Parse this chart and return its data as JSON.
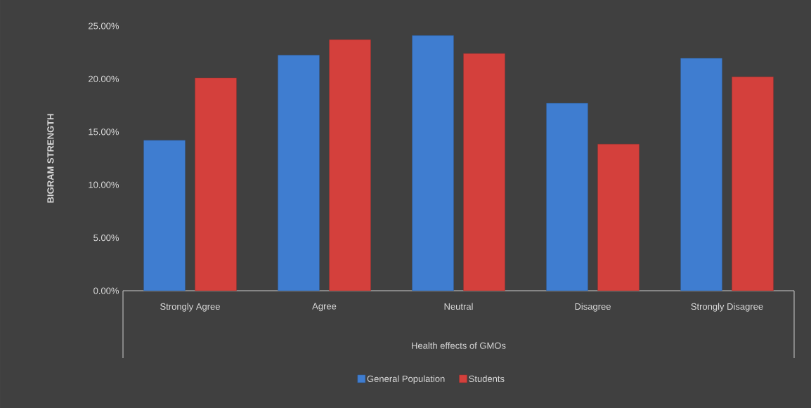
{
  "chart_data": {
    "type": "bar",
    "categories": [
      "Strongly Agree",
      "Agree",
      "Neutral",
      "Disagree",
      "Strongly Disagree"
    ],
    "xlabel": "Health effects of GMOs",
    "ylabel": "BIGRAM STRENGTH",
    "series": [
      {
        "name": "General Population",
        "color": "#3f7dd0",
        "values": [
          14.2,
          22.25,
          24.1,
          17.7,
          21.95
        ]
      },
      {
        "name": "Students",
        "color": "#d4403c",
        "values": [
          20.1,
          23.7,
          22.4,
          13.85,
          20.2
        ]
      }
    ],
    "ylim": [
      0,
      25
    ],
    "yticks": [
      {
        "value": 0,
        "label": "0.00%"
      },
      {
        "value": 5,
        "label": "5.00%"
      },
      {
        "value": 10,
        "label": "10.00%"
      },
      {
        "value": 15,
        "label": "15.00%"
      },
      {
        "value": 20,
        "label": "20.00%"
      },
      {
        "value": 25,
        "label": "25.00%"
      }
    ],
    "legend": "bottom"
  }
}
